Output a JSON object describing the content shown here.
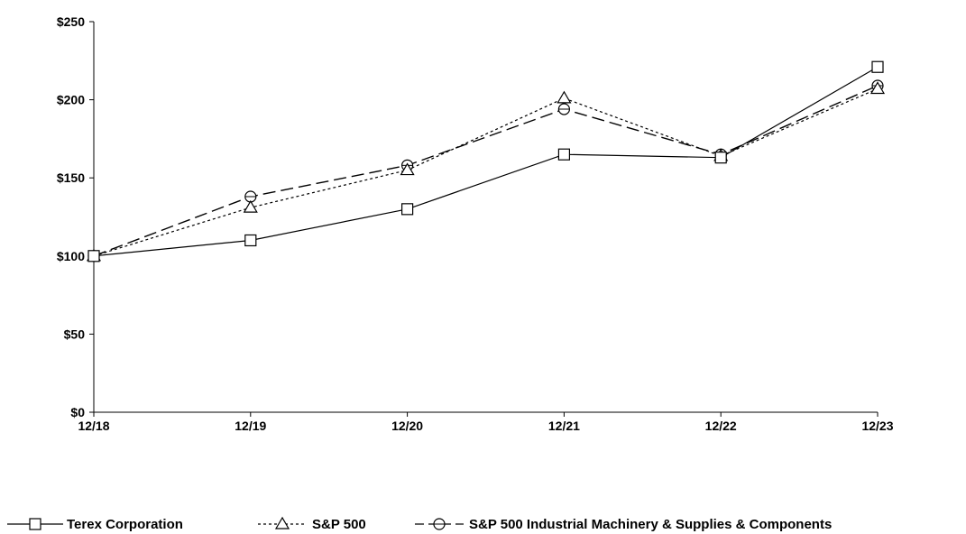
{
  "chart_data": {
    "type": "line",
    "categories": [
      "12/18",
      "12/19",
      "12/20",
      "12/21",
      "12/22",
      "12/23"
    ],
    "ylim": [
      0,
      250
    ],
    "y_ticks": [
      0,
      50,
      100,
      150,
      200,
      250
    ],
    "y_tick_labels": [
      "$0",
      "$50",
      "$100",
      "$150",
      "$200",
      "$250"
    ],
    "grid": false,
    "legend_position": "bottom",
    "series": [
      {
        "name": "Terex Corporation",
        "marker": "square",
        "dash": "solid",
        "values": [
          100,
          110,
          130,
          165,
          163,
          221
        ]
      },
      {
        "name": "S&P 500",
        "marker": "triangle",
        "dash": "dotted",
        "values": [
          100,
          131,
          155,
          201,
          164,
          207
        ]
      },
      {
        "name": "S&P 500 Industrial Machinery & Supplies & Components",
        "marker": "circle",
        "dash": "dashed",
        "values": [
          100,
          138,
          158,
          194,
          165,
          209
        ]
      }
    ]
  }
}
